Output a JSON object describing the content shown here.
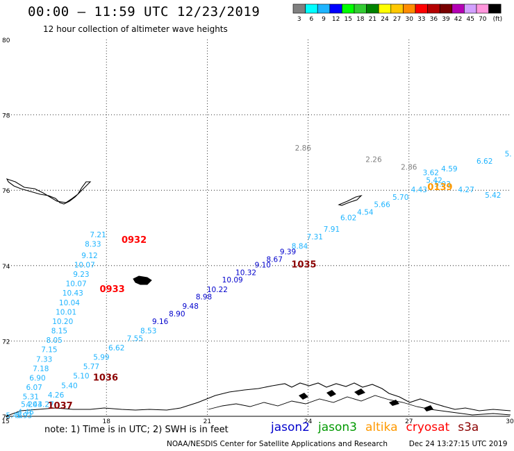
{
  "header": {
    "title": "00:00 – 11:59 UTC 12/23/2019",
    "subtitle": "12 hour collection of altimeter wave heights"
  },
  "footer": {
    "note": "note: 1) Time is in UTC; 2) SWH is in feet",
    "credit": "NOAA/NESDIS Center for Satellite Applications and Research",
    "timestamp": "Dec 24 13:27:15 UTC 2019"
  },
  "colorbar": {
    "colors": [
      "#808080",
      "#00ffff",
      "#1eb4ff",
      "#0000ff",
      "#00ff00",
      "#32cd32",
      "#008200",
      "#ffff00",
      "#ffc800",
      "#ff8c00",
      "#ff0000",
      "#b40000",
      "#780000",
      "#b400b4",
      "#d2a0ff",
      "#ff96dc",
      "#000000"
    ],
    "labels": [
      "3",
      "6",
      "9",
      "12",
      "15",
      "18",
      "21",
      "24",
      "27",
      "30",
      "33",
      "36",
      "39",
      "42",
      "45",
      "70",
      "(ft)"
    ]
  },
  "satellites": [
    {
      "name": "jason2",
      "color": "#0000cc"
    },
    {
      "name": "jason3",
      "color": "#009900"
    },
    {
      "name": "altika",
      "color": "#ff9900"
    },
    {
      "name": "cryosat",
      "color": "#ff0000"
    },
    {
      "name": "s3a",
      "color": "#8b0000"
    }
  ],
  "chart_data": {
    "type": "scatter",
    "title": "00:00 – 11:59 UTC 12/23/2019",
    "subtitle": "12 hour collection of altimeter wave heights",
    "xlim": [
      15,
      30
    ],
    "ylim": [
      70,
      80
    ],
    "x_ticks": [
      "15",
      "18",
      "21",
      "24",
      "27",
      "30"
    ],
    "y_ticks": [
      "70",
      "72",
      "74",
      "76",
      "78",
      "80"
    ],
    "grid": true,
    "units": "ft",
    "time_labels": [
      {
        "text": "0932",
        "x": 18.45,
        "y": 74.6,
        "color": "#ff0000"
      },
      {
        "text": "0933",
        "x": 17.8,
        "y": 73.3,
        "color": "#ff0000"
      },
      {
        "text": "1035",
        "x": 23.5,
        "y": 73.95,
        "color": "#8b0000"
      },
      {
        "text": "1036",
        "x": 17.6,
        "y": 70.95,
        "color": "#8b0000"
      },
      {
        "text": "1037",
        "x": 16.25,
        "y": 70.2,
        "color": "#8b0000"
      },
      {
        "text": "0139",
        "x": 27.55,
        "y": 76.0,
        "color": "#ff9900"
      }
    ],
    "series": [
      {
        "name": "cryosat-track-1",
        "color": "#1eb4ff",
        "points": [
          {
            "x": 17.75,
            "y": 74.75,
            "v": "7.21"
          },
          {
            "x": 17.6,
            "y": 74.5,
            "v": "8.33"
          },
          {
            "x": 17.5,
            "y": 74.2,
            "v": "9.12"
          },
          {
            "x": 17.35,
            "y": 73.95,
            "v": "10.07"
          },
          {
            "x": 17.25,
            "y": 73.7,
            "v": "9.23"
          },
          {
            "x": 17.1,
            "y": 73.45,
            "v": "10.07"
          },
          {
            "x": 17.0,
            "y": 73.2,
            "v": "10.43"
          },
          {
            "x": 16.9,
            "y": 72.95,
            "v": "10.04"
          },
          {
            "x": 16.8,
            "y": 72.7,
            "v": "10.01"
          },
          {
            "x": 16.7,
            "y": 72.45,
            "v": "10.20"
          },
          {
            "x": 16.6,
            "y": 72.2,
            "v": "8.15"
          },
          {
            "x": 16.45,
            "y": 71.95,
            "v": "8.05"
          },
          {
            "x": 16.3,
            "y": 71.7,
            "v": "7.15"
          },
          {
            "x": 16.15,
            "y": 71.45,
            "v": "7.33"
          },
          {
            "x": 16.05,
            "y": 71.2,
            "v": "7.18"
          },
          {
            "x": 15.95,
            "y": 70.95,
            "v": "6.90"
          },
          {
            "x": 15.85,
            "y": 70.7,
            "v": "6.07"
          },
          {
            "x": 15.75,
            "y": 70.45,
            "v": "5.31"
          },
          {
            "x": 15.7,
            "y": 70.25,
            "v": "5.20"
          },
          {
            "x": 15.6,
            "y": 70.05,
            "v": "4.46"
          }
        ]
      },
      {
        "name": "cryosat-track-2",
        "color": "#1eb4ff",
        "points": [
          {
            "x": 16.2,
            "y": 70.25,
            "v": "4.27"
          },
          {
            "x": 16.5,
            "y": 70.5,
            "v": "4.26"
          },
          {
            "x": 16.9,
            "y": 70.75,
            "v": "5.40"
          },
          {
            "x": 17.25,
            "y": 71.0,
            "v": "5.10"
          },
          {
            "x": 17.55,
            "y": 71.25,
            "v": "5.77"
          },
          {
            "x": 17.85,
            "y": 71.5,
            "v": "5.99"
          },
          {
            "x": 18.3,
            "y": 71.75,
            "v": "6.62"
          },
          {
            "x": 18.85,
            "y": 72.0,
            "v": "7.55"
          },
          {
            "x": 19.25,
            "y": 72.2,
            "v": "8.53"
          }
        ]
      },
      {
        "name": "jason2-track",
        "color": "#0000cc",
        "points": [
          {
            "x": 19.6,
            "y": 72.45,
            "v": "9.16"
          },
          {
            "x": 20.1,
            "y": 72.65,
            "v": "8.90"
          },
          {
            "x": 20.5,
            "y": 72.85,
            "v": "9.48"
          },
          {
            "x": 20.9,
            "y": 73.1,
            "v": "8.98"
          },
          {
            "x": 21.3,
            "y": 73.3,
            "v": "10.22"
          },
          {
            "x": 21.75,
            "y": 73.55,
            "v": "10.09"
          },
          {
            "x": 22.15,
            "y": 73.75,
            "v": "10.32"
          },
          {
            "x": 22.65,
            "y": 73.95,
            "v": "9.10"
          },
          {
            "x": 23.0,
            "y": 74.1,
            "v": "8.67"
          },
          {
            "x": 23.4,
            "y": 74.3,
            "v": "9.39"
          }
        ]
      },
      {
        "name": "cryosat-track-3",
        "color": "#1eb4ff",
        "points": [
          {
            "x": 23.75,
            "y": 74.45,
            "v": "8.84"
          },
          {
            "x": 24.2,
            "y": 74.7,
            "v": "7.31"
          },
          {
            "x": 24.7,
            "y": 74.9,
            "v": "7.91"
          },
          {
            "x": 25.2,
            "y": 75.2,
            "v": "6.02"
          },
          {
            "x": 25.7,
            "y": 75.35,
            "v": "4.54"
          },
          {
            "x": 26.2,
            "y": 75.55,
            "v": "5.66"
          },
          {
            "x": 26.75,
            "y": 75.75,
            "v": "5.70"
          },
          {
            "x": 27.3,
            "y": 75.95,
            "v": "4.43"
          },
          {
            "x": 27.75,
            "y": 76.2,
            "v": "5.42"
          },
          {
            "x": 28.0,
            "y": 76.1,
            "v": "5.03"
          },
          {
            "x": 28.7,
            "y": 75.95,
            "v": "4.27"
          },
          {
            "x": 29.5,
            "y": 75.8,
            "v": "5.42"
          }
        ]
      },
      {
        "name": "cryosat-track-4",
        "color": "#1eb4ff",
        "points": [
          {
            "x": 27.65,
            "y": 76.4,
            "v": "3.62"
          },
          {
            "x": 28.2,
            "y": 76.5,
            "v": "4.59"
          },
          {
            "x": 29.25,
            "y": 76.7,
            "v": "6.62"
          },
          {
            "x": 29.95,
            "y": 76.9,
            "v": "5."
          }
        ]
      },
      {
        "name": "altika-track",
        "color": "#808080",
        "points": [
          {
            "x": 23.85,
            "y": 77.05,
            "v": "2.86"
          },
          {
            "x": 25.95,
            "y": 76.75,
            "v": "2.26"
          },
          {
            "x": 27.0,
            "y": 76.55,
            "v": "2.86"
          }
        ]
      },
      {
        "name": "s3a-track",
        "color": "#1eb4ff",
        "points": [
          {
            "x": 15.25,
            "y": 69.95,
            "v": "5.46"
          },
          {
            "x": 15.55,
            "y": 69.95,
            "v": "5.93"
          },
          {
            "x": 15.85,
            "y": 70.25,
            "v": "4.43"
          }
        ]
      }
    ]
  }
}
